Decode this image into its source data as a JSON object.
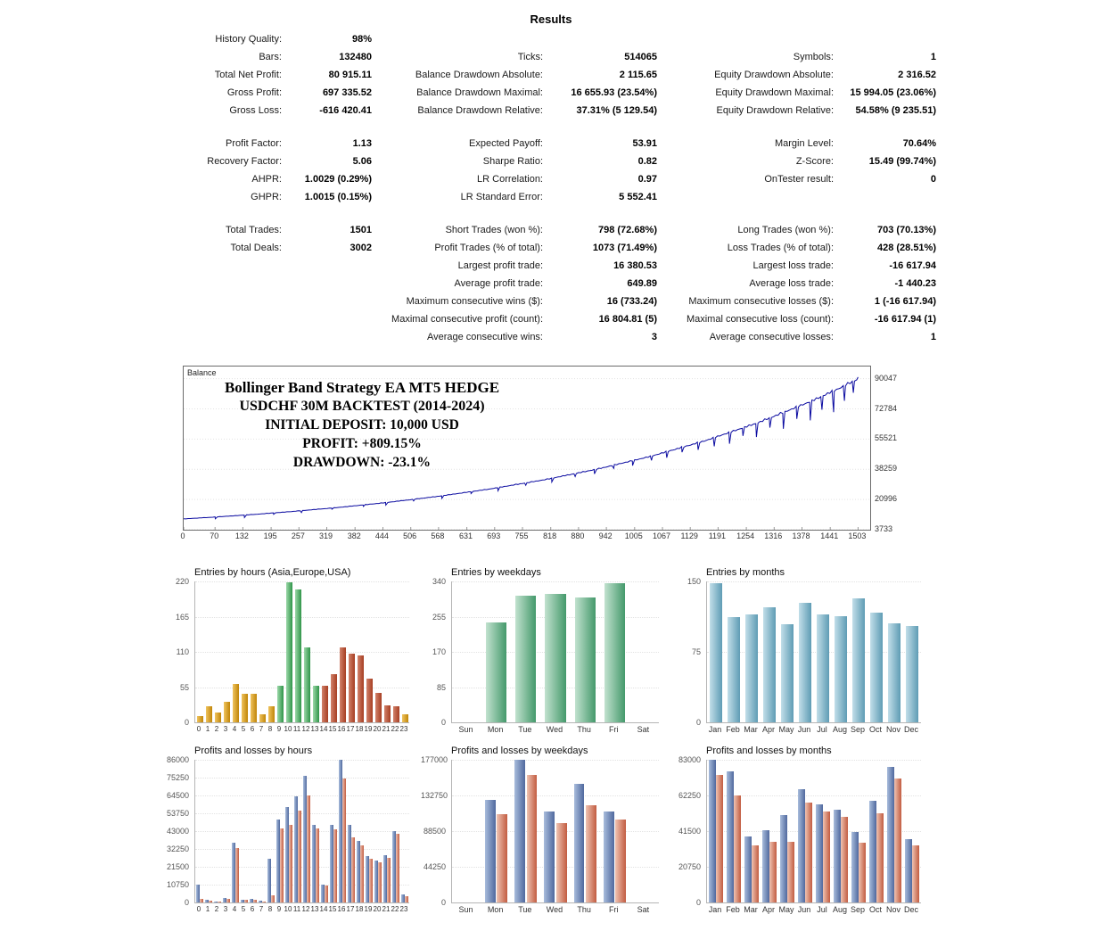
{
  "title": "Results",
  "palette": {
    "orange": [
      "#F0C45F",
      "#C08508"
    ],
    "green": [
      "#9CD8A9",
      "#2F9448"
    ],
    "red": [
      "#D2826B",
      "#A63E22"
    ],
    "wd_green": [
      "#C2E2CF",
      "#44996B"
    ],
    "teal": [
      "#C2DEE9",
      "#5E9CB4"
    ],
    "blue": [
      "#A8BCDC",
      "#50699E"
    ],
    "loss_red": [
      "#EFC3B2",
      "#C25C41"
    ]
  },
  "stats_rows": [
    {
      "cells": [
        [
          "History Quality:",
          "98%"
        ],
        null,
        null
      ]
    },
    {
      "cells": [
        [
          "Bars:",
          "132480"
        ],
        [
          "Ticks:",
          "514065"
        ],
        [
          "Symbols:",
          "1"
        ]
      ]
    },
    {
      "cells": [
        [
          "Total Net Profit:",
          "80 915.11"
        ],
        [
          "Balance Drawdown Absolute:",
          "2 115.65"
        ],
        [
          "Equity Drawdown Absolute:",
          "2 316.52"
        ]
      ]
    },
    {
      "cells": [
        [
          "Gross Profit:",
          "697 335.52"
        ],
        [
          "Balance Drawdown Maximal:",
          "16 655.93 (23.54%)"
        ],
        [
          "Equity Drawdown Maximal:",
          "15 994.05 (23.06%)"
        ]
      ]
    },
    {
      "cells": [
        [
          "Gross Loss:",
          "-616 420.41"
        ],
        [
          "Balance Drawdown Relative:",
          "37.31% (5 129.54)"
        ],
        [
          "Equity Drawdown Relative:",
          "54.58% (9 235.51)"
        ]
      ]
    },
    {
      "spacer": true
    },
    {
      "cells": [
        [
          "Profit Factor:",
          "1.13"
        ],
        [
          "Expected Payoff:",
          "53.91"
        ],
        [
          "Margin Level:",
          "70.64%"
        ]
      ]
    },
    {
      "cells": [
        [
          "Recovery Factor:",
          "5.06"
        ],
        [
          "Sharpe Ratio:",
          "0.82"
        ],
        [
          "Z-Score:",
          "15.49 (99.74%)"
        ]
      ]
    },
    {
      "cells": [
        [
          "AHPR:",
          "1.0029 (0.29%)"
        ],
        [
          "LR Correlation:",
          "0.97"
        ],
        [
          "OnTester result:",
          "0"
        ]
      ]
    },
    {
      "cells": [
        [
          "GHPR:",
          "1.0015 (0.15%)"
        ],
        [
          "LR Standard Error:",
          "5 552.41"
        ],
        null
      ]
    },
    {
      "spacer": true
    },
    {
      "cells": [
        [
          "Total Trades:",
          "1501"
        ],
        [
          "Short Trades (won %):",
          "798 (72.68%)"
        ],
        [
          "Long Trades (won %):",
          "703 (70.13%)"
        ]
      ]
    },
    {
      "cells": [
        [
          "Total Deals:",
          "3002"
        ],
        [
          "Profit Trades (% of total):",
          "1073 (71.49%)"
        ],
        [
          "Loss Trades (% of total):",
          "428 (28.51%)"
        ]
      ]
    },
    {
      "cells": [
        null,
        [
          "Largest profit trade:",
          "16 380.53"
        ],
        [
          "Largest loss trade:",
          "-16 617.94"
        ]
      ]
    },
    {
      "cells": [
        null,
        [
          "Average profit trade:",
          "649.89"
        ],
        [
          "Average loss trade:",
          "-1 440.23"
        ]
      ]
    },
    {
      "cells": [
        null,
        [
          "Maximum consecutive wins ($):",
          "16 (733.24)"
        ],
        [
          "Maximum consecutive losses ($):",
          "1 (-16 617.94)"
        ]
      ]
    },
    {
      "cells": [
        null,
        [
          "Maximal consecutive profit (count):",
          "16 804.81 (5)"
        ],
        [
          "Maximal consecutive loss (count):",
          "-16 617.94 (1)"
        ]
      ]
    },
    {
      "cells": [
        null,
        [
          "Average consecutive wins:",
          "3"
        ],
        [
          "Average consecutive losses:",
          "1"
        ]
      ]
    }
  ],
  "chart_data": [
    {
      "id": "balance",
      "type": "line",
      "series_label": "Balance",
      "overlay_lines": [
        "Bollinger Band Strategy EA MT5 HEDGE",
        "USDCHF 30M BACKTEST (2014-2024)",
        "INITIAL DEPOSIT: 10,000 USD",
        "PROFIT: +809.15%",
        "DRAWDOWN: -23.1%"
      ],
      "y_ticks": [
        90047,
        72784,
        55521,
        38259,
        20996,
        3733
      ],
      "x_ticks": [
        0,
        70,
        132,
        195,
        257,
        319,
        382,
        444,
        506,
        568,
        631,
        693,
        755,
        818,
        880,
        942,
        1005,
        1067,
        1129,
        1191,
        1254,
        1316,
        1378,
        1441,
        1503
      ],
      "x_max": 1530,
      "value_range": [
        3733,
        97000
      ],
      "line_color": "#0a0aa0",
      "curve": [
        [
          0,
          10000
        ],
        [
          70,
          11080
        ],
        [
          150,
          12460
        ],
        [
          240,
          14230
        ],
        [
          340,
          16480
        ],
        [
          444,
          19200
        ],
        [
          560,
          22760
        ],
        [
          680,
          27150
        ],
        [
          800,
          32380
        ],
        [
          920,
          38620
        ],
        [
          1040,
          46060
        ],
        [
          1160,
          54940
        ],
        [
          1280,
          65530
        ],
        [
          1400,
          78160
        ],
        [
          1460,
          85350
        ],
        [
          1503,
          90915
        ]
      ],
      "spikes": [
        [
          70,
          1100
        ],
        [
          135,
          1500
        ],
        [
          200,
          900
        ],
        [
          262,
          1200
        ],
        [
          330,
          800
        ],
        [
          400,
          1000
        ],
        [
          450,
          1600
        ],
        [
          512,
          1100
        ],
        [
          575,
          1700
        ],
        [
          640,
          1300
        ],
        [
          700,
          2000
        ],
        [
          762,
          1600
        ],
        [
          820,
          2400
        ],
        [
          872,
          2000
        ],
        [
          915,
          2700
        ],
        [
          958,
          2200
        ],
        [
          1000,
          3200
        ],
        [
          1042,
          2800
        ],
        [
          1076,
          3800
        ],
        [
          1110,
          3200
        ],
        [
          1146,
          4500
        ],
        [
          1182,
          5500
        ],
        [
          1216,
          7000
        ],
        [
          1246,
          5200
        ],
        [
          1276,
          8500
        ],
        [
          1306,
          6200
        ],
        [
          1336,
          10000
        ],
        [
          1366,
          7500
        ],
        [
          1396,
          11500
        ],
        [
          1422,
          8500
        ],
        [
          1448,
          13000
        ],
        [
          1472,
          9500
        ],
        [
          1492,
          7500
        ]
      ]
    },
    {
      "id": "entries_by_hours",
      "type": "bar",
      "title": "Entries by hours (Asia,Europe,USA)",
      "categories": [
        "0",
        "1",
        "2",
        "3",
        "4",
        "5",
        "6",
        "7",
        "8",
        "9",
        "10",
        "11",
        "12",
        "13",
        "14",
        "15",
        "16",
        "17",
        "18",
        "19",
        "20",
        "21",
        "22",
        "23"
      ],
      "values": [
        10,
        25,
        15,
        32,
        60,
        45,
        44,
        12,
        25,
        57,
        218,
        207,
        117,
        57,
        57,
        75,
        117,
        107,
        104,
        68,
        46,
        27,
        25,
        12
      ],
      "bar_colors": [
        "orange",
        "orange",
        "orange",
        "orange",
        "orange",
        "orange",
        "orange",
        "orange",
        "orange",
        "green",
        "green",
        "green",
        "green",
        "green",
        "red",
        "red",
        "red",
        "red",
        "red",
        "red",
        "red",
        "red",
        "red",
        "orange"
      ],
      "ylim": [
        0,
        220
      ],
      "yticks": [
        0,
        55,
        110,
        165,
        220
      ]
    },
    {
      "id": "entries_by_weekdays",
      "type": "bar",
      "title": "Entries by weekdays",
      "categories": [
        "Sun",
        "Mon",
        "Tue",
        "Wed",
        "Thu",
        "Fri",
        "Sat"
      ],
      "values": [
        0,
        240,
        305,
        310,
        302,
        335,
        0
      ],
      "color": "wd_green",
      "ylim": [
        0,
        340
      ],
      "yticks": [
        0,
        85,
        170,
        255,
        340
      ]
    },
    {
      "id": "entries_by_months",
      "type": "bar",
      "title": "Entries by months",
      "categories": [
        "Jan",
        "Feb",
        "Mar",
        "Apr",
        "May",
        "Jun",
        "Jul",
        "Aug",
        "Sep",
        "Oct",
        "Nov",
        "Dec"
      ],
      "values": [
        148,
        112,
        115,
        122,
        104,
        127,
        115,
        113,
        132,
        117,
        105,
        103
      ],
      "color": "teal",
      "ylim": [
        0,
        150
      ],
      "yticks": [
        0,
        75,
        150
      ]
    },
    {
      "id": "pl_by_hours",
      "type": "bar",
      "title": "Profits and losses by hours",
      "categories": [
        "0",
        "1",
        "2",
        "3",
        "4",
        "5",
        "6",
        "7",
        "8",
        "9",
        "10",
        "11",
        "12",
        "13",
        "14",
        "15",
        "16",
        "17",
        "18",
        "19",
        "20",
        "21",
        "22",
        "23"
      ],
      "series": [
        {
          "name": "profit",
          "color": "blue",
          "values": [
            10500,
            1500,
            800,
            2500,
            36000,
            1500,
            2000,
            1200,
            26500,
            50000,
            57500,
            64000,
            76500,
            46500,
            11000,
            47000,
            86000,
            47000,
            37000,
            28000,
            25500,
            28500,
            43000,
            5000
          ]
        },
        {
          "name": "loss",
          "color": "loss_red",
          "values": [
            2000,
            1200,
            600,
            2000,
            33000,
            1800,
            1500,
            800,
            4500,
            44500,
            47000,
            55500,
            64500,
            44500,
            10000,
            44000,
            74500,
            39000,
            34500,
            26500,
            24000,
            27000,
            41500,
            4000
          ]
        }
      ],
      "ylim": [
        0,
        86000
      ],
      "yticks": [
        0,
        10750,
        21500,
        32250,
        43000,
        53750,
        64500,
        75250,
        86000
      ]
    },
    {
      "id": "pl_by_weekdays",
      "type": "bar",
      "title": "Profits and losses by weekdays",
      "categories": [
        "Sun",
        "Mon",
        "Tue",
        "Wed",
        "Thu",
        "Fri",
        "Sat"
      ],
      "series": [
        {
          "name": "profit",
          "color": "blue",
          "values": [
            0,
            127000,
            177000,
            113000,
            147000,
            113000,
            0
          ]
        },
        {
          "name": "loss",
          "color": "loss_red",
          "values": [
            0,
            110000,
            158000,
            98000,
            121000,
            103000,
            0
          ]
        }
      ],
      "ylim": [
        0,
        177000
      ],
      "yticks": [
        0,
        44250,
        88500,
        132750,
        177000
      ]
    },
    {
      "id": "pl_by_months",
      "type": "bar",
      "title": "Profits and losses by months",
      "categories": [
        "Jan",
        "Feb",
        "Mar",
        "Apr",
        "May",
        "Jun",
        "Jul",
        "Aug",
        "Sep",
        "Oct",
        "Nov",
        "Dec"
      ],
      "series": [
        {
          "name": "profit",
          "color": "blue",
          "values": [
            83000,
            76000,
            38500,
            42000,
            51000,
            66000,
            57000,
            54000,
            41000,
            59000,
            79000,
            37000
          ]
        },
        {
          "name": "loss",
          "color": "loss_red",
          "values": [
            74000,
            62000,
            33000,
            35500,
            35500,
            58000,
            53000,
            50000,
            35000,
            52000,
            72000,
            33000
          ]
        }
      ],
      "ylim": [
        0,
        83000
      ],
      "yticks": [
        0,
        20750,
        41500,
        62250,
        83000
      ]
    }
  ]
}
